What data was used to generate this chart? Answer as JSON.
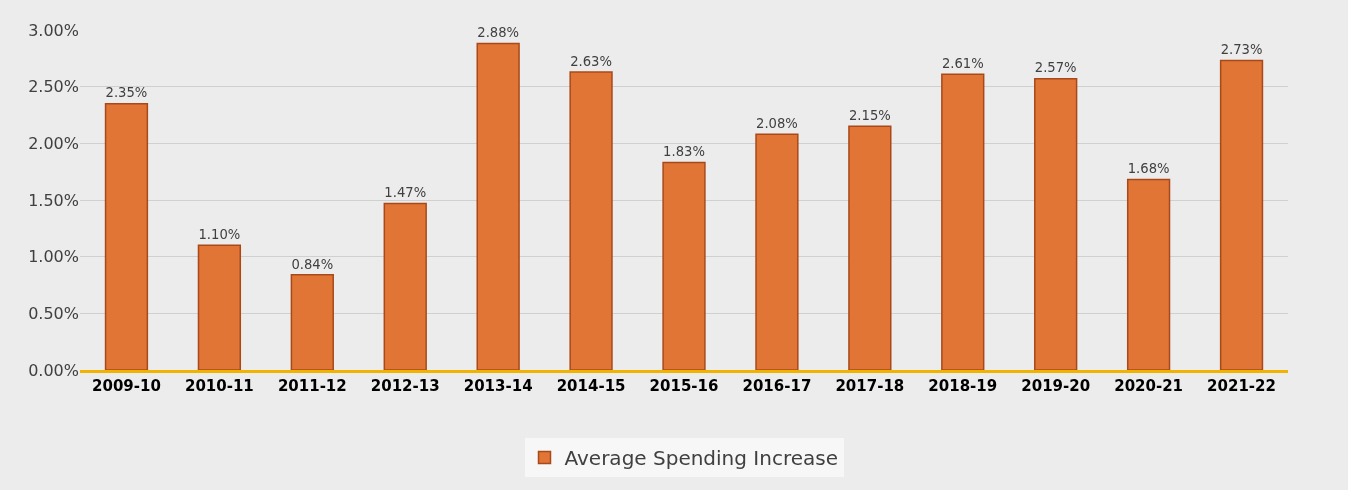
{
  "chart_data": {
    "type": "bar",
    "categories": [
      "2009-10",
      "2010-11",
      "2011-12",
      "2012-13",
      "2013-14",
      "2014-15",
      "2015-16",
      "2016-17",
      "2017-18",
      "2018-19",
      "2019-20",
      "2020-21",
      "2021-22"
    ],
    "series": [
      {
        "name": "Average Spending Increase",
        "color": "#e07535",
        "values": [
          2.35,
          1.1,
          0.84,
          1.47,
          2.88,
          2.63,
          1.83,
          2.08,
          2.15,
          2.61,
          2.57,
          1.68,
          2.73
        ],
        "value_labels": [
          "2.35%",
          "1.10%",
          "0.84%",
          "1.47%",
          "2.88%",
          "2.63%",
          "1.83%",
          "2.08%",
          "2.15%",
          "2.61%",
          "2.57%",
          "1.68%",
          "2.73%"
        ]
      }
    ],
    "ylim": [
      0,
      3
    ],
    "yticks": [
      {
        "value": 0,
        "label": "0.00%"
      },
      {
        "value": 0.5,
        "label": "0.50%"
      },
      {
        "value": 1,
        "label": "1.00%"
      },
      {
        "value": 1.5,
        "label": "1.50%"
      },
      {
        "value": 2,
        "label": "2.00%"
      },
      {
        "value": 2.5,
        "label": "2.50%"
      },
      {
        "value": 3,
        "label": "3.00%"
      }
    ],
    "grid": "y",
    "legend": "bottom"
  }
}
